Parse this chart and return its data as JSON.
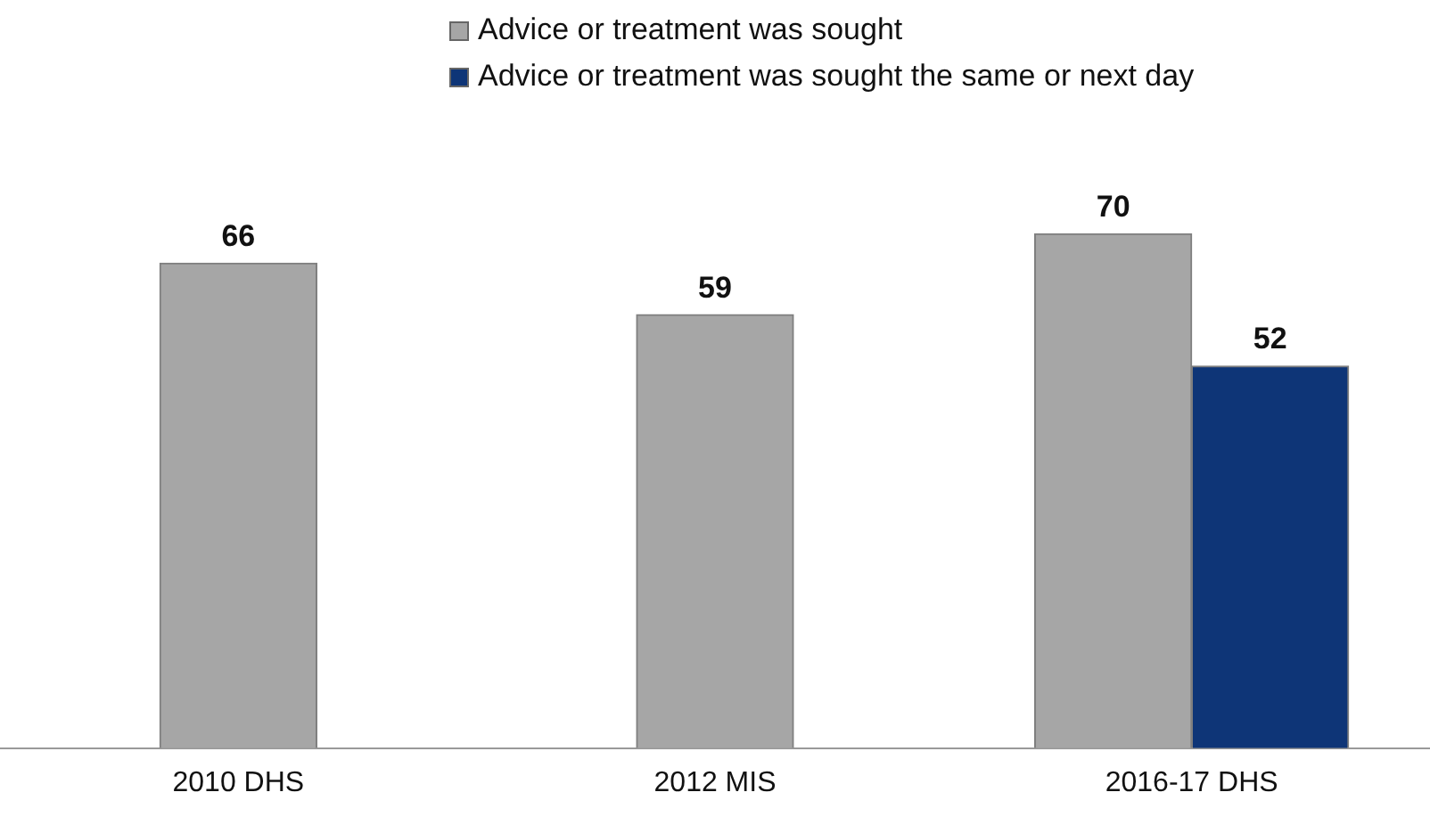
{
  "chart_data": {
    "type": "bar",
    "categories": [
      "2010 DHS",
      "2012 MIS",
      "2016-17 DHS"
    ],
    "series": [
      {
        "name": "Advice or treatment was sought",
        "color": "#a6a6a6",
        "values": [
          66,
          59,
          70
        ]
      },
      {
        "name": "Advice or treatment was sought the same or next day",
        "color": "#0e3577",
        "values": [
          null,
          null,
          52
        ]
      }
    ],
    "data_labels": true,
    "legend": "top",
    "grid": false,
    "tick_labels": "x"
  }
}
